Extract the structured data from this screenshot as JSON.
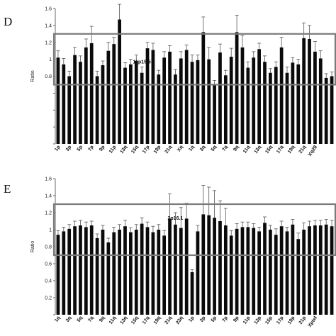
{
  "colors": {
    "bar": "#0a0a0a",
    "band": "#7a7a7a",
    "errorbar": "#555555",
    "axis": "#444444"
  },
  "chart_data": [
    {
      "panel_label": "D",
      "type": "bar",
      "ylabel": "Ratio",
      "ylim": [
        0,
        1.6
      ],
      "yticks": [
        0,
        0.2,
        0.4,
        0.6,
        0.8,
        1,
        1.2,
        1.4,
        1.6
      ],
      "ytick_labels": [
        "",
        "",
        "",
        "",
        "0.8",
        "1",
        "1.2",
        "1.4",
        "1.6"
      ],
      "band": [
        0.7,
        1.3
      ],
      "annotation": {
        "text": "11p15.5",
        "bar_index": 15
      },
      "x_tick_labels": [
        "1p",
        "3p",
        "5p",
        "7p",
        "9p",
        "11p",
        "13q",
        "15q",
        "17p",
        "19p",
        "21q",
        "Xq",
        "1q",
        "3q",
        "5q",
        "7q",
        "9q",
        "11q",
        "13q",
        "15q",
        "17q",
        "19q",
        "21q",
        "Xq28"
      ],
      "values": [
        1.02,
        0.94,
        0.8,
        1.05,
        0.97,
        1.14,
        1.19,
        0.8,
        0.93,
        1.1,
        1.18,
        1.47,
        0.9,
        0.94,
        0.98,
        0.84,
        1.13,
        1.11,
        0.82,
        1.02,
        1.09,
        0.82,
        1.01,
        1.11,
        0.97,
        0.99,
        1.32,
        1.0,
        0.7,
        1.08,
        0.81,
        1.03,
        1.32,
        1.14,
        0.9,
        1.02,
        1.12,
        0.97,
        0.84,
        0.91,
        1.14,
        0.84,
        0.96,
        0.94,
        1.25,
        1.24,
        1.09,
        1.01,
        0.78,
        0.8
      ],
      "errors": [
        0.08,
        0.07,
        0.06,
        0.09,
        0.07,
        0.1,
        0.2,
        0.06,
        0.05,
        0.1,
        0.08,
        0.18,
        0.06,
        0.06,
        0.07,
        0.07,
        0.07,
        0.08,
        0.05,
        0.07,
        0.07,
        0.06,
        0.08,
        0.06,
        0.08,
        0.06,
        0.18,
        0.14,
        0.05,
        0.1,
        0.06,
        0.1,
        0.2,
        0.14,
        0.07,
        0.07,
        0.07,
        0.07,
        0.05,
        0.06,
        0.12,
        0.07,
        0.06,
        0.06,
        0.18,
        0.16,
        0.12,
        0.09,
        0.05,
        0.05
      ]
    },
    {
      "panel_label": "E",
      "type": "bar",
      "ylabel": "Ratio",
      "ylim": [
        0,
        1.6
      ],
      "yticks": [
        0,
        0.2,
        0.4,
        0.6,
        0.8,
        1,
        1.2,
        1.4,
        1.6
      ],
      "ytick_labels": [
        "",
        "0.2",
        "0.4",
        "0.6",
        "0.8",
        "1",
        "1.2",
        "1.4",
        "1.6"
      ],
      "band": [
        0.7,
        1.3
      ],
      "annotation": {
        "text": "2p16.1",
        "bar_index": 21
      },
      "x_tick_labels": [
        "1q",
        "3q",
        "5q",
        "7q",
        "9q",
        "11q",
        "13q",
        "15q",
        "17q",
        "19q",
        "21q",
        "23q",
        "1p",
        "3p",
        "5p",
        "7p",
        "9p",
        "11p",
        "13p",
        "15p",
        "17p",
        "19p",
        "21p",
        "Xptel"
      ],
      "values": [
        0.94,
        0.98,
        1.01,
        1.04,
        1.05,
        1.03,
        1.05,
        0.9,
        1.0,
        0.85,
        0.97,
        1.0,
        1.04,
        0.97,
        1.0,
        1.07,
        1.03,
        0.97,
        1.0,
        0.93,
        1.13,
        1.06,
        1.02,
        1.13,
        0.5,
        0.98,
        1.18,
        1.17,
        1.14,
        1.1,
        1.05,
        0.93,
        1.01,
        1.03,
        1.03,
        1.02,
        0.98,
        1.08,
        1.0,
        0.94,
        1.04,
        0.98,
        1.06,
        0.89,
        1.0,
        1.04,
        1.05,
        1.05,
        1.06,
        1.04
      ],
      "errors": [
        0.05,
        0.05,
        0.05,
        0.06,
        0.06,
        0.06,
        0.05,
        0.05,
        0.05,
        0.05,
        0.06,
        0.06,
        0.07,
        0.05,
        0.06,
        0.07,
        0.06,
        0.07,
        0.06,
        0.06,
        0.29,
        0.14,
        0.24,
        0.18,
        0.03,
        0.07,
        0.34,
        0.33,
        0.32,
        0.24,
        0.2,
        0.06,
        0.06,
        0.06,
        0.06,
        0.05,
        0.05,
        0.07,
        0.05,
        0.07,
        0.06,
        0.05,
        0.06,
        0.07,
        0.08,
        0.06,
        0.06,
        0.06,
        0.06,
        0.07
      ]
    }
  ]
}
